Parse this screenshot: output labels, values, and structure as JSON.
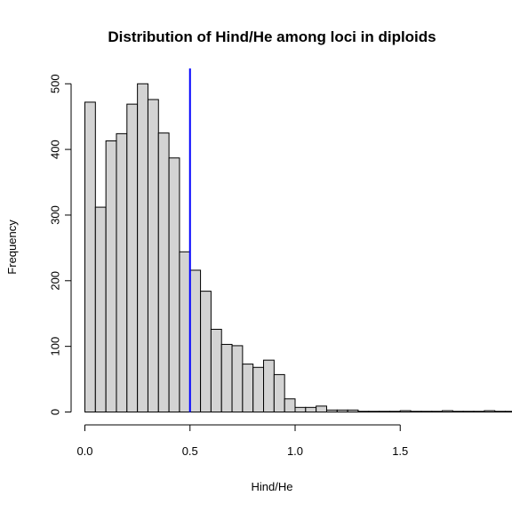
{
  "chart_data": {
    "type": "bar",
    "title": "Distribution of Hind/He among loci in diploids",
    "xlabel": "Hind/He",
    "ylabel": "Frequency",
    "bin_width": 0.05,
    "bin_start": 0.0,
    "values": [
      472,
      312,
      413,
      424,
      469,
      500,
      476,
      425,
      387,
      244,
      216,
      184,
      126,
      103,
      101,
      73,
      68,
      79,
      57,
      20,
      7,
      7,
      9,
      3,
      3,
      3,
      1,
      1,
      1,
      1,
      2,
      1,
      1,
      1,
      2,
      1,
      1,
      1,
      2,
      1,
      1,
      1,
      1,
      1,
      1,
      2
    ],
    "xlim": [
      0,
      1.8
    ],
    "ylim": [
      0,
      500
    ],
    "xticks": [
      0.0,
      0.5,
      1.0,
      1.5
    ],
    "xtick_labels": [
      "0.0",
      "0.5",
      "1.0",
      "1.5"
    ],
    "yticks": [
      0,
      100,
      200,
      300,
      400,
      500
    ],
    "ytick_labels": [
      "0",
      "100",
      "200",
      "300",
      "400",
      "500"
    ],
    "reference_line": {
      "x": 0.5,
      "color": "#0000ff"
    },
    "bar_fill": "#d3d3d3",
    "grid": false
  }
}
